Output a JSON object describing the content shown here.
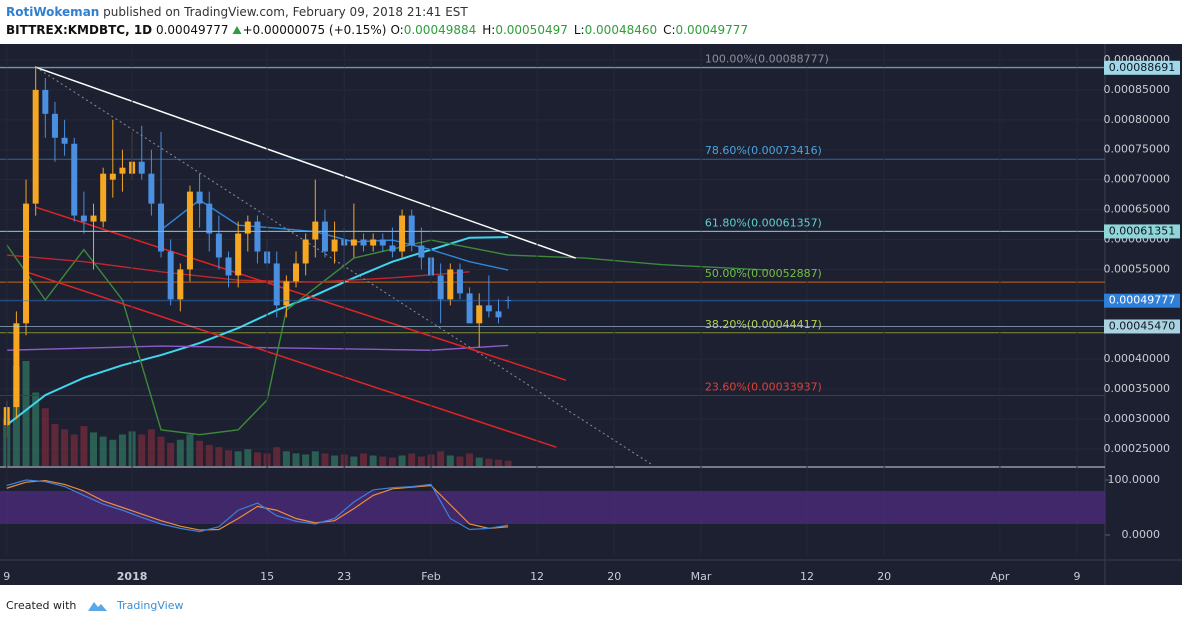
{
  "header": {
    "author": "RotiWokeman",
    "published": "published on TradingView.com, February 09, 2018 21:41 EST",
    "symbol": "BITTREX:KMDBTC, 1D",
    "last": "0.00049777",
    "change": "+0.00000075 (+0.15%)",
    "ohlc": [
      {
        "label": "O:",
        "value": "0.00049884"
      },
      {
        "label": "H:",
        "value": "0.00050497"
      },
      {
        "label": "L:",
        "value": "0.00048460"
      },
      {
        "label": "C:",
        "value": "0.00049777"
      }
    ]
  },
  "footer": {
    "created": "Created with",
    "brand": "TradingView"
  },
  "chart_data": {
    "type": "candlestick",
    "xlim": [
      -13.7,
      100.9
    ],
    "ylim": [
      0.0002216,
      0.000925
    ],
    "xticks": [
      {
        "value": -13,
        "label": "9"
      },
      {
        "value": 0,
        "label": "2018"
      },
      {
        "value": 14,
        "label": "15"
      },
      {
        "value": 22,
        "label": "23"
      },
      {
        "value": 31,
        "label": "Feb"
      },
      {
        "value": 42,
        "label": "12"
      },
      {
        "value": 50,
        "label": "20"
      },
      {
        "value": 59,
        "label": "Mar"
      },
      {
        "value": 70,
        "label": "12"
      },
      {
        "value": 78,
        "label": "20"
      },
      {
        "value": 90,
        "label": "Apr"
      },
      {
        "value": 98,
        "label": "9"
      }
    ],
    "yticks": [
      {
        "value": 0.00025,
        "label": "0.00025000"
      },
      {
        "value": 0.0003,
        "label": "0.00030000"
      },
      {
        "value": 0.00035,
        "label": "0.00035000"
      },
      {
        "value": 0.0004,
        "label": "0.00040000"
      },
      {
        "value": 0.00045,
        "label": "0.00045000"
      },
      {
        "value": 0.0005,
        "label": "0.00050000"
      },
      {
        "value": 0.00055,
        "label": "0.00055000"
      },
      {
        "value": 0.0006,
        "label": "0.00060000"
      },
      {
        "value": 0.00065,
        "label": "0.00065000"
      },
      {
        "value": 0.0007,
        "label": "0.00070000"
      },
      {
        "value": 0.00075,
        "label": "0.00075000"
      },
      {
        "value": 0.0008,
        "label": "0.00080000"
      },
      {
        "value": 0.00085,
        "label": "0.00085000"
      },
      {
        "value": 0.0009,
        "label": "0.00090000"
      }
    ],
    "grid": true,
    "up_color": "#f5a623",
    "down_color": "#4a8fe0",
    "x": [
      -13,
      -12,
      -11,
      -10,
      -9,
      -8,
      -7,
      -6,
      -5,
      -4,
      -3,
      -2,
      -1,
      0,
      1,
      2,
      3,
      4,
      5,
      6,
      7,
      8,
      9,
      10,
      11,
      12,
      13,
      14,
      15,
      16,
      17,
      18,
      19,
      20,
      21,
      22,
      23,
      24,
      25,
      26,
      27,
      28,
      29,
      30,
      31,
      32,
      33,
      34,
      35,
      36,
      37,
      38,
      39
    ],
    "open": [
      0.00029,
      0.00032,
      0.00046,
      0.00066,
      0.00085,
      0.00081,
      0.00077,
      0.00076,
      0.00064,
      0.00063,
      0.00063,
      0.0007,
      0.00071,
      0.00071,
      0.00073,
      0.00071,
      0.00066,
      0.00058,
      0.0005,
      0.00055,
      0.00068,
      0.00066,
      0.00061,
      0.00057,
      0.00054,
      0.00061,
      0.00063,
      0.00058,
      0.00056,
      0.00049,
      0.00053,
      0.00056,
      0.0006,
      0.00063,
      0.00058,
      0.0006,
      0.00059,
      0.0006,
      0.00059,
      0.0006,
      0.00059,
      0.00058,
      0.00064,
      0.00059,
      0.00057,
      0.00054,
      0.0005,
      0.00055,
      0.00051,
      0.00046,
      0.00049,
      0.00048,
      0.00049884
    ],
    "high": [
      0.00033,
      0.00048,
      0.0007,
      0.00089,
      0.00087,
      0.00083,
      0.0008,
      0.00077,
      0.00068,
      0.00066,
      0.00072,
      0.0008,
      0.00075,
      0.00078,
      0.00079,
      0.00075,
      0.00078,
      0.0006,
      0.00056,
      0.00069,
      0.00071,
      0.00068,
      0.00064,
      0.00058,
      0.00063,
      0.00064,
      0.00064,
      0.0006,
      0.00058,
      0.00054,
      0.00058,
      0.00061,
      0.0007,
      0.00065,
      0.00063,
      0.00062,
      0.00066,
      0.00061,
      0.00061,
      0.00061,
      0.00062,
      0.00065,
      0.00065,
      0.00062,
      0.00058,
      0.00056,
      0.00056,
      0.00056,
      0.00052,
      0.00051,
      0.00054,
      0.0005,
      0.00050497
    ],
    "low": [
      0.00027,
      0.0003,
      0.00044,
      0.00064,
      0.00077,
      0.00073,
      0.00074,
      0.00063,
      0.00061,
      0.00055,
      0.00062,
      0.00067,
      0.00068,
      0.0007,
      0.0007,
      0.00064,
      0.00057,
      0.00049,
      0.00048,
      0.00053,
      0.00062,
      0.00058,
      0.00055,
      0.00052,
      0.00052,
      0.00058,
      0.00056,
      0.00055,
      0.00047,
      0.00047,
      0.00052,
      0.00054,
      0.00057,
      0.00057,
      0.00056,
      0.00055,
      0.00057,
      0.00058,
      0.00058,
      0.00058,
      0.00057,
      0.00057,
      0.00058,
      0.00055,
      0.00053,
      0.00046,
      0.00049,
      0.0005,
      0.00046,
      0.00042,
      0.00047,
      0.00046,
      0.0004846
    ],
    "close": [
      0.00032,
      0.00046,
      0.00066,
      0.00085,
      0.00081,
      0.00077,
      0.00076,
      0.00064,
      0.00063,
      0.00064,
      0.00071,
      0.00071,
      0.00072,
      0.00073,
      0.00071,
      0.00066,
      0.00058,
      0.0005,
      0.00055,
      0.00068,
      0.00066,
      0.00061,
      0.00057,
      0.00054,
      0.00061,
      0.00063,
      0.00058,
      0.00056,
      0.00049,
      0.00053,
      0.00056,
      0.0006,
      0.00063,
      0.00058,
      0.0006,
      0.00059,
      0.0006,
      0.00059,
      0.0006,
      0.00059,
      0.00058,
      0.00064,
      0.00059,
      0.00057,
      0.00054,
      0.0005,
      0.00055,
      0.00051,
      0.00046,
      0.00049,
      0.00048,
      0.00047,
      0.00049777
    ],
    "volume": {
      "up_color": "#2f6b5a",
      "down_color": "#6b2a3a",
      "values": [
        45,
        95,
        100,
        70,
        55,
        40,
        35,
        30,
        38,
        32,
        28,
        25,
        30,
        33,
        30,
        35,
        28,
        22,
        25,
        30,
        24,
        20,
        18,
        15,
        14,
        16,
        13,
        12,
        18,
        14,
        12,
        11,
        14,
        12,
        10,
        11,
        9,
        12,
        10,
        9,
        8,
        10,
        12,
        9,
        11,
        14,
        10,
        9,
        12,
        8,
        7,
        6,
        5
      ]
    },
    "lines": [
      {
        "color": "#3fd6f0",
        "x": [
          -13,
          -9,
          -5,
          -1,
          3,
          7,
          11,
          15,
          19,
          23,
          27,
          31,
          35,
          39
        ],
        "values": [
          0.00029,
          0.00034,
          0.000369,
          0.00039,
          0.000407,
          0.000427,
          0.000452,
          0.000482,
          0.000507,
          0.000536,
          0.000563,
          0.000583,
          0.000603,
          0.000604
        ]
      },
      {
        "color": "#2f86d9",
        "x": [
          3,
          7,
          11,
          15,
          19,
          23,
          27,
          31,
          35,
          39
        ],
        "values": [
          0.000616,
          0.000666,
          0.000624,
          0.000619,
          0.000613,
          0.000596,
          0.000599,
          0.000583,
          0.000563,
          0.000549
        ]
      },
      {
        "color": "#8a5cc8",
        "x": [
          -13,
          3,
          19,
          31,
          39
        ],
        "values": [
          0.000415,
          0.000422,
          0.000418,
          0.000415,
          0.000423
        ]
      },
      {
        "color": "#3d8a3a",
        "x": [
          -13,
          -9,
          -5,
          -1,
          3,
          7,
          11,
          14,
          16,
          23,
          31,
          39,
          47,
          55,
          66
        ],
        "values": [
          0.000591,
          0.000499,
          0.000583,
          0.000499,
          0.000282,
          0.000274,
          0.000282,
          0.000332,
          0.000482,
          0.000569,
          0.000599,
          0.000574,
          0.000569,
          0.000558,
          0.000549
        ]
      },
      {
        "color": "#c0262c",
        "x": [
          -13,
          -5,
          3,
          11,
          19,
          27,
          35
        ],
        "values": [
          0.000574,
          0.000563,
          0.000546,
          0.000532,
          0.000529,
          0.000536,
          0.000546
        ]
      }
    ],
    "trendlines": [
      {
        "color": "#ffffff",
        "dashed": false,
        "x": [
          -10,
          46
        ],
        "values": [
          0.000888,
          0.000569
        ]
      },
      {
        "color": "#8a8f9a",
        "dashed": true,
        "x": [
          -10,
          54
        ],
        "values": [
          0.000888,
          0.000223
        ]
      },
      {
        "color": "#e02424",
        "dashed": false,
        "x": [
          -10,
          45
        ],
        "values": [
          0.000654,
          0.000365
        ]
      },
      {
        "color": "#e02424",
        "dashed": false,
        "x": [
          -11,
          44
        ],
        "values": [
          0.000546,
          0.000253
        ]
      }
    ],
    "fib_label_x": 59.4,
    "fib_levels": [
      {
        "value": 0.00088777,
        "label": "100.00%(0.00088777)",
        "color": "#4f6f80",
        "text_color": "#8a8f9a"
      },
      {
        "value": 0.00073416,
        "label": "78.60%(0.00073416)",
        "color": "#2a6a9c",
        "text_color": "#4aa3df"
      },
      {
        "value": 0.00061357,
        "label": "61.80%(0.00061357)",
        "color": "#4fb6b6",
        "text_color": "#5fd0d0"
      },
      {
        "value": 0.00052887,
        "label": "50.00%(0.00052887)",
        "color": "#c9671a",
        "text_color": "#74c044"
      },
      {
        "value": 0.00044417,
        "label": "38.20%(0.00044417)",
        "color": "#7f8f36",
        "text_color": "#b7d34a"
      },
      {
        "value": 0.00033937,
        "label": "23.60%(0.00033937)",
        "color": "#7a2626",
        "text_color": "#e0403a"
      }
    ],
    "price_badges": [
      {
        "value": 0.00088691,
        "label": "0.00088691",
        "color": "#9fd8e8",
        "text_color": "#131722"
      },
      {
        "value": 0.00061351,
        "label": "0.00061351",
        "color": "#8fd6d9",
        "text_color": "#131722"
      },
      {
        "value": 0.00049777,
        "label": "0.00049777",
        "color": "#2f7ed8",
        "text_color": "#ffffff"
      },
      {
        "value": 0.0004547,
        "label": "0.00045470",
        "color": "#a9d3e0",
        "text_color": "#131722"
      }
    ],
    "oscillator": {
      "ylim": [
        -36.4,
        118.2
      ],
      "yticks": [
        {
          "value": 100,
          "label": "100.0000"
        },
        {
          "value": 0,
          "label": "0.0000"
        }
      ],
      "band": [
        20,
        80
      ],
      "band_color": "#4b2a7a",
      "x": [
        -13,
        -11,
        -9,
        -7,
        -5,
        -3,
        -1,
        1,
        3,
        5,
        7,
        9,
        11,
        13,
        15,
        17,
        19,
        21,
        23,
        25,
        27,
        29,
        31,
        33,
        35,
        37,
        39
      ],
      "k": {
        "color": "#3f7fd8",
        "values": [
          90,
          100,
          97,
          88,
          72,
          56,
          45,
          32,
          20,
          12,
          6,
          15,
          45,
          58,
          35,
          25,
          20,
          30,
          60,
          82,
          86,
          88,
          92,
          30,
          10,
          12,
          18
        ]
      },
      "d": {
        "color": "#f08c3a",
        "values": [
          85,
          96,
          99,
          92,
          80,
          62,
          50,
          38,
          26,
          16,
          9,
          10,
          30,
          52,
          45,
          30,
          22,
          26,
          48,
          72,
          84,
          87,
          90,
          55,
          20,
          12,
          15
        ]
      }
    }
  }
}
